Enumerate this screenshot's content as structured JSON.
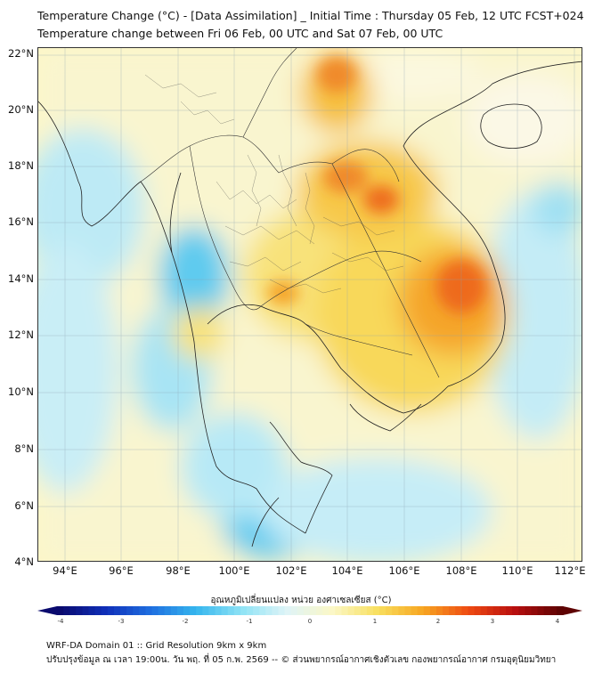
{
  "title_line1": "Temperature Change (°C) - [Data Assimilation] _ Initial Time : Thursday 05 Feb, 12 UTC FCST+024",
  "title_line2": "Temperature change between Fri 06 Feb, 00 UTC and Sat 07 Feb, 00 UTC",
  "lat_labels": [
    "22°N",
    "20°N",
    "18°N",
    "16°N",
    "14°N",
    "12°N",
    "10°N",
    "8°N",
    "6°N",
    "4°N"
  ],
  "lon_labels": [
    "94°E",
    "96°E",
    "98°E",
    "100°E",
    "102°E",
    "104°E",
    "106°E",
    "108°E",
    "110°E",
    "112°E"
  ],
  "colorbar": {
    "title": "อุณหภูมิเปลี่ยนแปลง หน่วย องศาเซลเซียส (°C)",
    "tick_labels": [
      "-4",
      "-3",
      "-2",
      "-1",
      "0",
      "1",
      "2",
      "3",
      "4"
    ],
    "colors": [
      "#0a0a6e",
      "#0f2fb8",
      "#1f6fe0",
      "#36b6ee",
      "#8fe3f5",
      "#dff4f7",
      "#fbf7c6",
      "#f8df5e",
      "#f7a521",
      "#ee4a12",
      "#b90f0f",
      "#5e0303"
    ]
  },
  "footer_line1": "WRF-DA Domain 01 :: Grid Resolution 9km x 9km",
  "footer_line2": "ปรับปรุงข้อมูล ณ เวลา 19:00น. วัน พฤ. ที่ 05 ก.พ. 2569 -- © ส่วนพยากรณ์อากาศเชิงตัวเลข กองพยากรณ์อากาศ กรมอุตุนิยมวิทยา"
}
